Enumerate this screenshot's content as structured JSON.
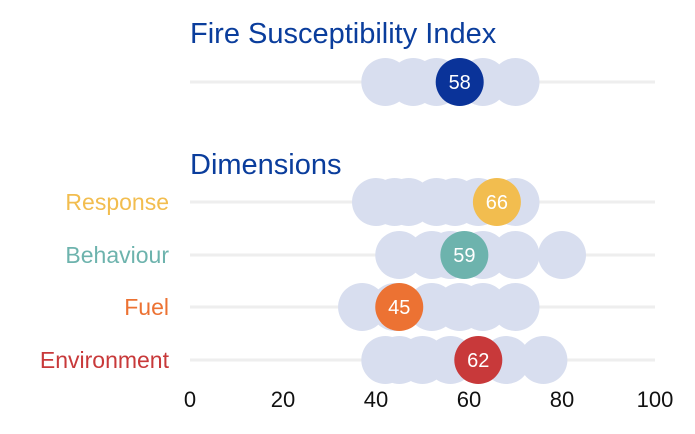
{
  "chart_data": {
    "type": "scatter",
    "title": "Fire Susceptibility Index",
    "section_title": "Dimensions",
    "xlim": [
      0,
      100
    ],
    "xticks": [
      "0",
      "20",
      "40",
      "60",
      "80",
      "100"
    ],
    "grid": "horizontal",
    "colors": {
      "heading": "#0a3d9c",
      "peer": "#d8deef",
      "track": "#eeeeee"
    },
    "index": {
      "label": "",
      "value": 58,
      "value_label": "58",
      "color": "#0a3399",
      "peers": [
        42,
        48,
        53,
        58,
        63,
        70
      ]
    },
    "dimensions": [
      {
        "label": "Response",
        "value": 66,
        "value_label": "66",
        "color": "#f2bd4f",
        "peers": [
          40,
          44,
          47,
          53,
          57,
          62,
          70
        ]
      },
      {
        "label": "Behaviour",
        "value": 59,
        "value_label": "59",
        "color": "#6db3ad",
        "peers": [
          45,
          52,
          56,
          63,
          70,
          80
        ]
      },
      {
        "label": "Fuel",
        "value": 45,
        "value_label": "45",
        "color": "#ec7233",
        "peers": [
          37,
          44,
          52,
          58,
          63,
          70
        ]
      },
      {
        "label": "Environment",
        "value": 62,
        "value_label": "62",
        "color": "#c8393a",
        "peers": [
          42,
          45,
          50,
          56,
          68,
          76
        ]
      }
    ]
  }
}
